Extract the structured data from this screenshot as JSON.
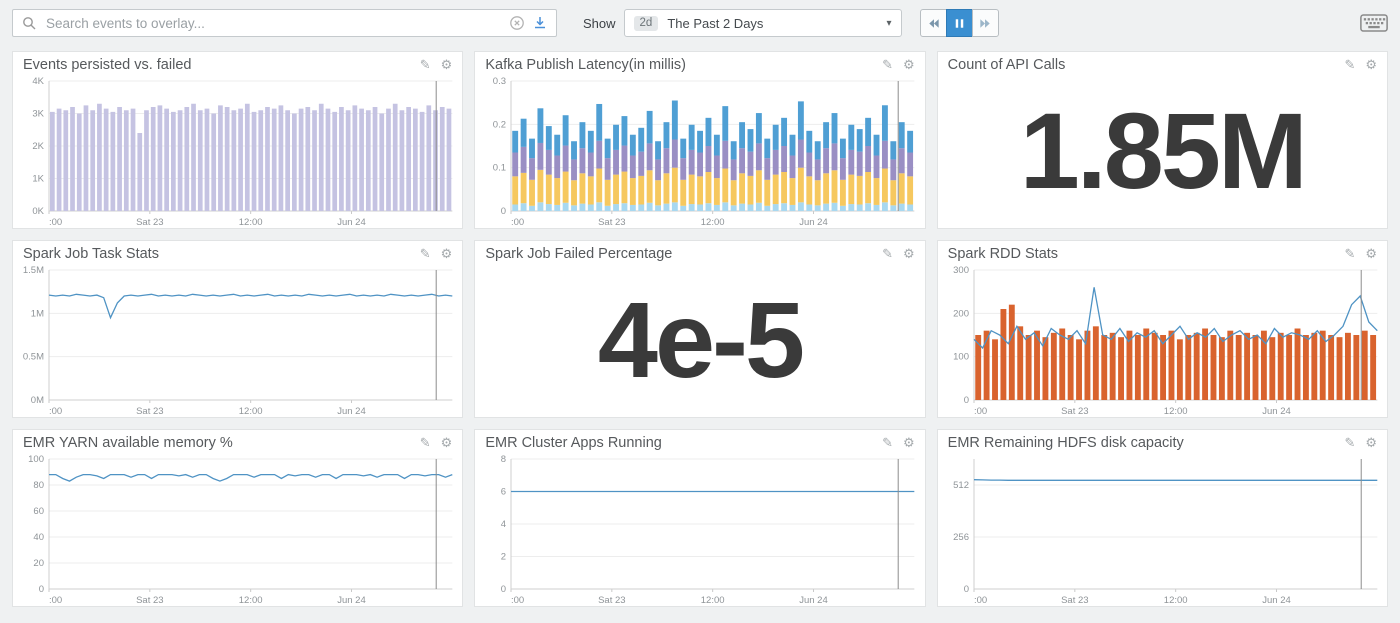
{
  "toolbar": {
    "search_placeholder": "Search events to overlay...",
    "show_label": "Show",
    "timeframe_badge": "2d",
    "timeframe_value": "The Past 2 Days",
    "caret_icon": "▾"
  },
  "icons": {
    "pencil": "✎",
    "gear": "⚙"
  },
  "panels": [
    {
      "title": "Events persisted vs. failed"
    },
    {
      "title": "Kafka Publish Latency(in millis)"
    },
    {
      "title": "Count of API Calls"
    },
    {
      "title": "Spark Job Task Stats"
    },
    {
      "title": "Spark Job Failed Percentage"
    },
    {
      "title": "Spark RDD Stats"
    },
    {
      "title": "EMR YARN available memory %"
    },
    {
      "title": "EMR Cluster Apps Running"
    },
    {
      "title": "EMR Remaining HDFS disk capacity"
    }
  ],
  "chart_data": {
    "xticks": [
      [
        0,
        ":00"
      ],
      [
        0.25,
        "Sat 23"
      ],
      [
        0.5,
        "12:00"
      ],
      [
        0.75,
        "Jun 24"
      ]
    ],
    "cursor": 0.96,
    "charts": {
      "events_persisted": {
        "type": "bar",
        "title": "Events persisted vs. failed",
        "color": "#c5c3e2",
        "ymax": 4000,
        "yticks": [
          [
            0,
            "0K"
          ],
          [
            1000,
            "1K"
          ],
          [
            2000,
            "2K"
          ],
          [
            3000,
            "3K"
          ],
          [
            4000,
            "4K"
          ]
        ],
        "values": [
          3050,
          3150,
          3100,
          3200,
          3000,
          3250,
          3100,
          3300,
          3150,
          3050,
          3200,
          3100,
          3150,
          2400,
          3100,
          3200,
          3250,
          3150,
          3050,
          3100,
          3200,
          3300,
          3100,
          3150,
          3000,
          3250,
          3200,
          3100,
          3150,
          3300,
          3050,
          3100,
          3200,
          3150,
          3250,
          3100,
          3000,
          3150,
          3200,
          3100,
          3300,
          3150,
          3050,
          3200,
          3100,
          3250,
          3150,
          3100,
          3200,
          3000,
          3150,
          3300,
          3100,
          3200,
          3150,
          3050,
          3250,
          3100,
          3200,
          3150
        ]
      },
      "kafka_latency": {
        "type": "stacked_bar",
        "title": "Kafka Publish Latency(in millis)",
        "ymax": 0.3,
        "yticks": [
          [
            0,
            "0"
          ],
          [
            0.1,
            "0.1"
          ],
          [
            0.2,
            "0.2"
          ],
          [
            0.3,
            "0.3"
          ]
        ],
        "series": [
          {
            "color": "#a8d8f0",
            "values": [
              0.015,
              0.018,
              0.012,
              0.02,
              0.016,
              0.014,
              0.019,
              0.013,
              0.017,
              0.015,
              0.02,
              0.012,
              0.016,
              0.018,
              0.014,
              0.015,
              0.019,
              0.013,
              0.017,
              0.02,
              0.012,
              0.016,
              0.015,
              0.018,
              0.014,
              0.02,
              0.013,
              0.017,
              0.015,
              0.019,
              0.012,
              0.016,
              0.018,
              0.014,
              0.02,
              0.015,
              0.013,
              0.017,
              0.019,
              0.012,
              0.016,
              0.015,
              0.018,
              0.014,
              0.02,
              0.013,
              0.017,
              0.015
            ]
          },
          {
            "color": "#f6c85f",
            "values": [
              0.065,
              0.07,
              0.06,
              0.075,
              0.068,
              0.062,
              0.072,
              0.058,
              0.07,
              0.065,
              0.078,
              0.06,
              0.068,
              0.073,
              0.062,
              0.066,
              0.075,
              0.058,
              0.07,
              0.08,
              0.06,
              0.068,
              0.065,
              0.072,
              0.062,
              0.078,
              0.058,
              0.07,
              0.066,
              0.075,
              0.06,
              0.068,
              0.072,
              0.062,
              0.08,
              0.065,
              0.058,
              0.07,
              0.075,
              0.06,
              0.068,
              0.066,
              0.072,
              0.062,
              0.078,
              0.058,
              0.07,
              0.065
            ]
          },
          {
            "color": "#9a8fc4",
            "values": [
              0.055,
              0.06,
              0.05,
              0.062,
              0.057,
              0.052,
              0.06,
              0.048,
              0.058,
              0.055,
              0.064,
              0.05,
              0.057,
              0.06,
              0.052,
              0.056,
              0.062,
              0.048,
              0.058,
              0.065,
              0.05,
              0.057,
              0.055,
              0.06,
              0.052,
              0.064,
              0.048,
              0.058,
              0.056,
              0.062,
              0.05,
              0.057,
              0.06,
              0.052,
              0.065,
              0.055,
              0.048,
              0.058,
              0.062,
              0.05,
              0.057,
              0.056,
              0.06,
              0.052,
              0.064,
              0.048,
              0.058,
              0.055
            ]
          },
          {
            "color": "#4f9fd4",
            "values": [
              0.05,
              0.065,
              0.045,
              0.08,
              0.055,
              0.048,
              0.07,
              0.042,
              0.06,
              0.05,
              0.085,
              0.045,
              0.058,
              0.068,
              0.048,
              0.055,
              0.075,
              0.042,
              0.06,
              0.09,
              0.045,
              0.058,
              0.05,
              0.065,
              0.048,
              0.08,
              0.042,
              0.06,
              0.052,
              0.07,
              0.045,
              0.058,
              0.065,
              0.048,
              0.088,
              0.05,
              0.042,
              0.06,
              0.07,
              0.045,
              0.058,
              0.052,
              0.065,
              0.048,
              0.082,
              0.042,
              0.06,
              0.05
            ]
          }
        ]
      },
      "api_calls": {
        "type": "number",
        "title": "Count of API Calls",
        "value": "1.85M"
      },
      "spark_task_stats": {
        "type": "line",
        "title": "Spark Job Task Stats",
        "color": "#4f93c4",
        "ymax": 1.5,
        "yticks": [
          [
            0,
            "0M"
          ],
          [
            0.5,
            "0.5M"
          ],
          [
            1,
            "1M"
          ],
          [
            1.5,
            "1.5M"
          ]
        ],
        "values": [
          1.21,
          1.2,
          1.21,
          1.2,
          1.22,
          1.21,
          1.2,
          1.21,
          1.18,
          0.95,
          1.12,
          1.2,
          1.21,
          1.2,
          1.21,
          1.22,
          1.2,
          1.21,
          1.2,
          1.21,
          1.2,
          1.22,
          1.21,
          1.2,
          1.21,
          1.2,
          1.21,
          1.22,
          1.2,
          1.21,
          1.2,
          1.21,
          1.22,
          1.2,
          1.21,
          1.2,
          1.21,
          1.2,
          1.22,
          1.21,
          1.2,
          1.21,
          1.2,
          1.21,
          1.22,
          1.2,
          1.21,
          1.2,
          1.21,
          1.2,
          1.22,
          1.21,
          1.2,
          1.21,
          1.2,
          1.21,
          1.22,
          1.2,
          1.21,
          1.2
        ]
      },
      "spark_failed_pct": {
        "type": "number",
        "title": "Spark Job Failed Percentage",
        "value": "4e-5"
      },
      "spark_rdd": {
        "type": "bar+line",
        "title": "Spark RDD Stats",
        "color": "#d9632e",
        "ymax": 300,
        "yticks": [
          [
            0,
            "0"
          ],
          [
            100,
            "100"
          ],
          [
            200,
            "200"
          ],
          [
            300,
            "300"
          ]
        ],
        "values": [
          150,
          160,
          140,
          210,
          220,
          170,
          150,
          160,
          145,
          155,
          165,
          150,
          140,
          160,
          170,
          150,
          155,
          145,
          160,
          150,
          165,
          155,
          150,
          160,
          140,
          150,
          155,
          165,
          150,
          145,
          160,
          150,
          155,
          150,
          160,
          145,
          155,
          150,
          165,
          150,
          155,
          160,
          150,
          145,
          155,
          150,
          160,
          150
        ],
        "line": {
          "color": "#4f93c4",
          "values": [
            140,
            120,
            160,
            150,
            130,
            170,
            140,
            155,
            125,
            165,
            150,
            140,
            160,
            130,
            260,
            150,
            140,
            165,
            135,
            155,
            145,
            160,
            130,
            150,
            170,
            140,
            155,
            145,
            165,
            135,
            150,
            160,
            140,
            150,
            130,
            165,
            145,
            155,
            150,
            140,
            160,
            135,
            150,
            170,
            220,
            240,
            180,
            160
          ]
        }
      },
      "yarn_memory": {
        "type": "line",
        "title": "EMR YARN available memory %",
        "color": "#4f93c4",
        "ymax": 100,
        "yticks": [
          [
            0,
            "0"
          ],
          [
            20,
            "20"
          ],
          [
            40,
            "40"
          ],
          [
            60,
            "60"
          ],
          [
            80,
            "80"
          ],
          [
            100,
            "100"
          ]
        ],
        "values": [
          88,
          88,
          85,
          83,
          86,
          88,
          88,
          87,
          85,
          88,
          88,
          88,
          86,
          88,
          88,
          85,
          88,
          88,
          88,
          87,
          88,
          86,
          88,
          88,
          85,
          83,
          85,
          88,
          88,
          88,
          86,
          88,
          88,
          88,
          85,
          88,
          87,
          88,
          88,
          86,
          88,
          88,
          85,
          88,
          88,
          88,
          87,
          88,
          86,
          88,
          88,
          88,
          85,
          88,
          88,
          87,
          88,
          88,
          86,
          88
        ]
      },
      "cluster_apps": {
        "type": "line",
        "title": "EMR Cluster Apps Running",
        "color": "#4f93c4",
        "ymax": 8,
        "yticks": [
          [
            0,
            "0"
          ],
          [
            2,
            "2"
          ],
          [
            4,
            "4"
          ],
          [
            6,
            "6"
          ],
          [
            8,
            "8"
          ]
        ],
        "values": [
          6,
          6
        ]
      },
      "hdfs_capacity": {
        "type": "line",
        "title": "EMR Remaining HDFS disk capacity",
        "color": "#4f93c4",
        "ymax": 640,
        "yticks": [
          [
            0,
            "0"
          ],
          [
            256,
            "256"
          ],
          [
            512,
            "512"
          ]
        ],
        "values": [
          538,
          537,
          536,
          536,
          535,
          535,
          535,
          535,
          535,
          535,
          535,
          535,
          535,
          535,
          535,
          535,
          535,
          535,
          535,
          535,
          535,
          535,
          535,
          535,
          535,
          535,
          535,
          535,
          535,
          535,
          535,
          535,
          535,
          535,
          535,
          535,
          535,
          535,
          535,
          535,
          535,
          535,
          535,
          535,
          535,
          535,
          535,
          535
        ]
      }
    }
  }
}
